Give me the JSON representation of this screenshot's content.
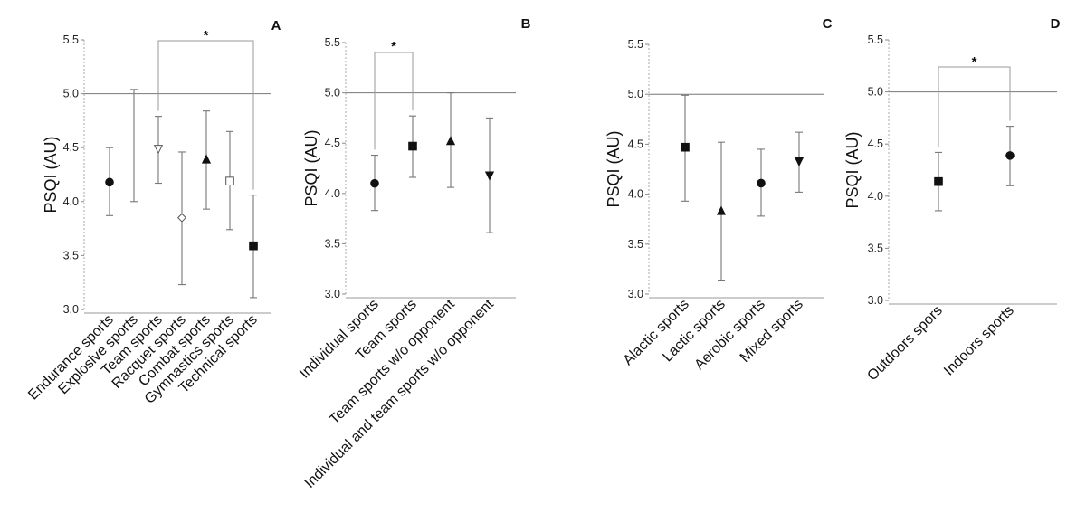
{
  "chart_data": [
    {
      "panel": "A",
      "type": "scatter",
      "ylabel": "PSQI (AU)",
      "ylim": [
        3.0,
        5.5
      ],
      "yticks": [
        "3.0",
        "3.5",
        "4.0",
        "4.5",
        "5.0",
        "5.5"
      ],
      "reference_line": 5.0,
      "categories": [
        "Endurance sports",
        "Explosive sports",
        "Team sports",
        "Racquet sports",
        "Combat sports",
        "Gymnastics sports",
        "Technical sports"
      ],
      "points": [
        {
          "mean": 4.18,
          "low": 3.87,
          "high": 4.5,
          "marker": "circle-filled"
        },
        {
          "mean": 4.52,
          "low": 4.0,
          "high": 5.04,
          "marker": "none"
        },
        {
          "mean": 4.49,
          "low": 4.17,
          "high": 4.79,
          "marker": "triangle-down-open"
        },
        {
          "mean": 3.85,
          "low": 3.23,
          "high": 4.46,
          "marker": "diamond-open"
        },
        {
          "mean": 4.39,
          "low": 3.93,
          "high": 4.84,
          "marker": "triangle-up-filled"
        },
        {
          "mean": 4.19,
          "low": 3.74,
          "high": 4.65,
          "marker": "square-open"
        },
        {
          "mean": 3.59,
          "low": 3.11,
          "high": 4.06,
          "marker": "square-filled"
        }
      ],
      "significance": [
        {
          "from": 2,
          "to": 6,
          "label": "*"
        }
      ]
    },
    {
      "panel": "B",
      "type": "scatter",
      "ylabel": "PSQI (AU)",
      "ylim": [
        3.0,
        5.5
      ],
      "yticks": [
        "3.0",
        "3.5",
        "4.0",
        "4.5",
        "5.0",
        "5.5"
      ],
      "reference_line": 5.0,
      "categories": [
        "Individual sports",
        "Team sports",
        "Team sports w/o opponent",
        "Individual and team sports w/o opponent"
      ],
      "points": [
        {
          "mean": 4.1,
          "low": 3.83,
          "high": 4.38,
          "marker": "circle-filled"
        },
        {
          "mean": 4.47,
          "low": 4.16,
          "high": 4.77,
          "marker": "square-filled"
        },
        {
          "mean": 4.52,
          "low": 4.06,
          "high": 5.0,
          "marker": "triangle-up-filled"
        },
        {
          "mean": 4.18,
          "low": 3.61,
          "high": 4.75,
          "marker": "triangle-down-filled"
        }
      ],
      "significance": [
        {
          "from": 0,
          "to": 1,
          "label": "*"
        }
      ]
    },
    {
      "panel": "C",
      "type": "scatter",
      "ylabel": "PSQI (AU)",
      "ylim": [
        3.0,
        5.5
      ],
      "yticks": [
        "3.0",
        "3.5",
        "4.0",
        "4.5",
        "5.0",
        "5.5"
      ],
      "reference_line": 5.0,
      "categories": [
        "Alactic sports",
        "Lactic sports",
        "Aerobic sports",
        "Mixed sports"
      ],
      "points": [
        {
          "mean": 4.47,
          "low": 3.93,
          "high": 4.99,
          "marker": "square-filled"
        },
        {
          "mean": 3.83,
          "low": 3.14,
          "high": 4.52,
          "marker": "triangle-up-filled"
        },
        {
          "mean": 4.11,
          "low": 3.78,
          "high": 4.45,
          "marker": "circle-filled"
        },
        {
          "mean": 4.33,
          "low": 4.02,
          "high": 4.62,
          "marker": "triangle-down-filled"
        }
      ],
      "significance": []
    },
    {
      "panel": "D",
      "type": "scatter",
      "ylabel": "PSQI (AU)",
      "ylim": [
        3.0,
        5.5
      ],
      "yticks": [
        "3.0",
        "3.5",
        "4.0",
        "4.5",
        "5.0",
        "5.5"
      ],
      "reference_line": 5.0,
      "categories": [
        "Outdoors spors",
        "Indoors sports"
      ],
      "points": [
        {
          "mean": 4.14,
          "low": 3.86,
          "high": 4.42,
          "marker": "square-filled"
        },
        {
          "mean": 4.39,
          "low": 4.1,
          "high": 4.67,
          "marker": "circle-filled"
        }
      ],
      "significance": [
        {
          "from": 0,
          "to": 1,
          "label": "*"
        }
      ]
    }
  ]
}
